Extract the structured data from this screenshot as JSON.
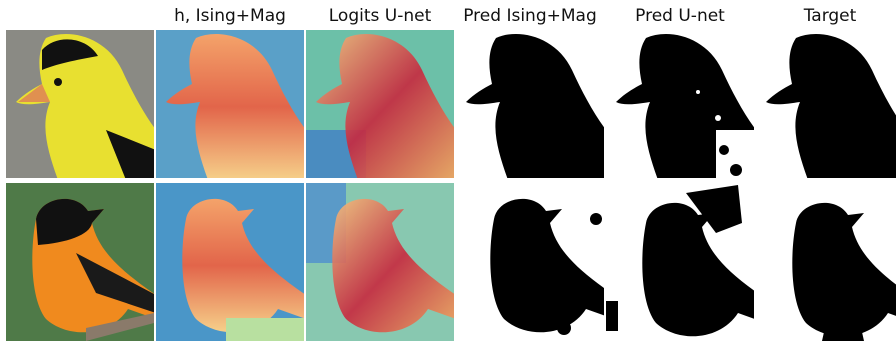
{
  "headers": [
    "h, Ising+Mag",
    "Logits U-net",
    "Pred Ising+Mag",
    "Pred U-net",
    "Target"
  ]
}
